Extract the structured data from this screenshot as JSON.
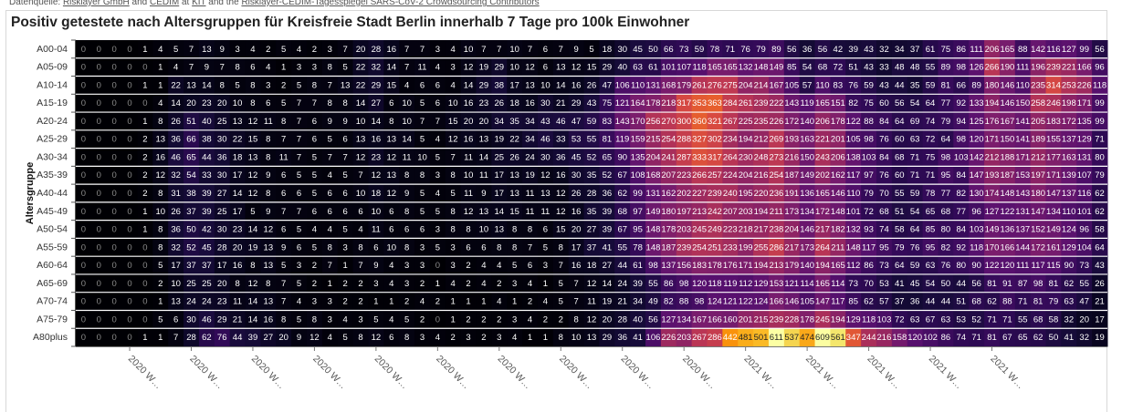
{
  "source": {
    "prefix": "Datenquelle: ",
    "links": [
      "Risklayer GmbH",
      "CEDIM",
      "KIT",
      "Risklayer-CEDIM-Tagesspiegel SARS-CoV-2 Crowdsourcing Contributors"
    ],
    "joiners": [
      " and ",
      " at ",
      " and the "
    ]
  },
  "chart_data": {
    "type": "heatmap",
    "title": "Positiv getestete nach Altersgruppen für Kreisfreie Stadt Berlin innerhalb 7 Tage pro 100k Einwohner",
    "xlabel": "",
    "ylabel": "Altersgruppe",
    "colorscale": "inferno",
    "zrange": [
      0,
      611
    ],
    "x_tick_labels": [
      "2020 W…",
      "2020 W…",
      "2020 W…",
      "2020 W…",
      "2020 W…",
      "2020 W…",
      "2020 W…",
      "2020 W…",
      "2020 W…",
      "2020 W…",
      "2021 W…",
      "2021 W…",
      "2021 W…",
      "2021 W…",
      "2021 W…"
    ],
    "x_tick_columns": [
      3,
      7,
      11,
      15,
      19,
      23,
      27,
      31,
      35,
      39,
      43,
      47,
      51,
      55,
      59
    ],
    "rows": [
      "A00-04",
      "A05-09",
      "A10-14",
      "A15-19",
      "A20-24",
      "A25-29",
      "A30-34",
      "A35-39",
      "A40-44",
      "A45-49",
      "A50-54",
      "A55-59",
      "A60-64",
      "A65-69",
      "A70-74",
      "A75-79",
      "A80plus"
    ],
    "values": [
      [
        0,
        0,
        0,
        0,
        1,
        4,
        5,
        7,
        13,
        9,
        3,
        4,
        2,
        5,
        4,
        2,
        3,
        7,
        20,
        28,
        16,
        7,
        7,
        3,
        4,
        10,
        7,
        7,
        10,
        7,
        6,
        7,
        9,
        5,
        18,
        30,
        45,
        50,
        66,
        73,
        59,
        78,
        71,
        76,
        79,
        89,
        56,
        36,
        56,
        42,
        39,
        43,
        32,
        34,
        37,
        61,
        75,
        86,
        111,
        206,
        165,
        88,
        142,
        116,
        127,
        99,
        56
      ],
      [
        0,
        0,
        0,
        0,
        0,
        1,
        4,
        7,
        9,
        7,
        8,
        6,
        4,
        1,
        3,
        3,
        8,
        5,
        22,
        32,
        14,
        7,
        11,
        4,
        3,
        12,
        19,
        29,
        10,
        12,
        6,
        13,
        12,
        15,
        29,
        40,
        63,
        61,
        101,
        107,
        118,
        165,
        165,
        132,
        148,
        149,
        85,
        54,
        68,
        72,
        51,
        43,
        33,
        48,
        48,
        55,
        89,
        98,
        126,
        266,
        190,
        111,
        196,
        239,
        221,
        166,
        96
      ],
      [
        0,
        0,
        0,
        0,
        1,
        1,
        22,
        13,
        14,
        8,
        5,
        8,
        3,
        2,
        5,
        8,
        7,
        13,
        22,
        29,
        15,
        4,
        6,
        6,
        4,
        14,
        29,
        38,
        17,
        13,
        10,
        14,
        16,
        26,
        47,
        106,
        110,
        131,
        168,
        179,
        261,
        276,
        275,
        204,
        214,
        167,
        105,
        57,
        110,
        83,
        76,
        59,
        43,
        44,
        35,
        59,
        81,
        66,
        89,
        180,
        146,
        110,
        235,
        314,
        253,
        226,
        118
      ],
      [
        0,
        0,
        0,
        0,
        0,
        4,
        14,
        20,
        23,
        20,
        10,
        8,
        6,
        5,
        7,
        7,
        8,
        8,
        14,
        27,
        6,
        10,
        5,
        6,
        10,
        16,
        23,
        26,
        18,
        16,
        30,
        21,
        29,
        43,
        75,
        121,
        164,
        178,
        218,
        317,
        353,
        363,
        284,
        261,
        239,
        222,
        143,
        119,
        165,
        151,
        82,
        75,
        60,
        56,
        54,
        64,
        77,
        92,
        133,
        194,
        146,
        150,
        258,
        246,
        198,
        171,
        99
      ],
      [
        0,
        0,
        0,
        0,
        1,
        8,
        26,
        51,
        40,
        25,
        13,
        12,
        11,
        8,
        7,
        6,
        9,
        9,
        10,
        14,
        8,
        10,
        7,
        7,
        15,
        20,
        20,
        34,
        35,
        34,
        43,
        46,
        47,
        59,
        83,
        143,
        170,
        256,
        270,
        300,
        360,
        321,
        267,
        225,
        235,
        226,
        172,
        140,
        206,
        178,
        122,
        88,
        84,
        64,
        69,
        74,
        79,
        94,
        125,
        176,
        167,
        141,
        205,
        183,
        172,
        135,
        99
      ],
      [
        0,
        0,
        0,
        0,
        2,
        13,
        36,
        66,
        38,
        30,
        22,
        15,
        8,
        7,
        7,
        6,
        5,
        6,
        13,
        16,
        13,
        14,
        5,
        4,
        12,
        16,
        13,
        19,
        22,
        34,
        46,
        33,
        53,
        55,
        81,
        119,
        159,
        215,
        254,
        288,
        327,
        302,
        234,
        194,
        212,
        269,
        193,
        163,
        221,
        201,
        105,
        98,
        76,
        60,
        63,
        72,
        64,
        98,
        120,
        171,
        150,
        141,
        189,
        155,
        137,
        129,
        71
      ],
      [
        0,
        0,
        0,
        0,
        2,
        16,
        46,
        65,
        44,
        36,
        18,
        13,
        8,
        11,
        7,
        5,
        7,
        7,
        12,
        23,
        12,
        11,
        10,
        5,
        7,
        11,
        14,
        25,
        26,
        24,
        30,
        36,
        45,
        52,
        65,
        90,
        135,
        204,
        241,
        287,
        333,
        317,
        264,
        230,
        248,
        273,
        216,
        150,
        243,
        206,
        138,
        103,
        84,
        68,
        71,
        75,
        98,
        103,
        142,
        212,
        188,
        171,
        212,
        177,
        163,
        131,
        80
      ],
      [
        0,
        0,
        0,
        0,
        2,
        12,
        32,
        54,
        33,
        30,
        17,
        12,
        9,
        6,
        5,
        5,
        4,
        5,
        7,
        12,
        13,
        8,
        8,
        3,
        8,
        10,
        11,
        17,
        13,
        19,
        12,
        16,
        30,
        35,
        52,
        67,
        108,
        168,
        207,
        223,
        266,
        257,
        224,
        204,
        216,
        254,
        187,
        149,
        202,
        162,
        117,
        97,
        76,
        60,
        71,
        71,
        95,
        84,
        147,
        193,
        187,
        153,
        197,
        171,
        139,
        107,
        79
      ],
      [
        0,
        0,
        0,
        0,
        2,
        8,
        31,
        38,
        39,
        27,
        14,
        12,
        8,
        6,
        6,
        5,
        6,
        6,
        10,
        18,
        12,
        9,
        5,
        4,
        5,
        11,
        9,
        17,
        13,
        11,
        13,
        12,
        26,
        28,
        36,
        62,
        99,
        131,
        162,
        202,
        227,
        239,
        240,
        195,
        220,
        236,
        191,
        136,
        165,
        146,
        110,
        79,
        70,
        55,
        59,
        78,
        77,
        82,
        130,
        174,
        148,
        143,
        180,
        147,
        137,
        116,
        62
      ],
      [
        0,
        0,
        0,
        0,
        1,
        10,
        26,
        37,
        39,
        25,
        17,
        5,
        9,
        7,
        7,
        6,
        6,
        6,
        6,
        10,
        6,
        8,
        5,
        5,
        8,
        12,
        13,
        14,
        15,
        11,
        11,
        12,
        16,
        35,
        39,
        68,
        97,
        149,
        180,
        197,
        213,
        242,
        207,
        203,
        194,
        211,
        173,
        134,
        172,
        148,
        101,
        72,
        68,
        51,
        54,
        65,
        68,
        77,
        96,
        127,
        122,
        131,
        147,
        134,
        110,
        101,
        62
      ],
      [
        0,
        0,
        0,
        0,
        1,
        8,
        36,
        50,
        42,
        30,
        23,
        14,
        12,
        6,
        5,
        4,
        4,
        5,
        4,
        11,
        6,
        6,
        6,
        3,
        8,
        8,
        10,
        13,
        8,
        8,
        6,
        15,
        20,
        27,
        39,
        67,
        95,
        148,
        178,
        203,
        245,
        249,
        223,
        218,
        217,
        238,
        204,
        146,
        217,
        182,
        132,
        93,
        74,
        58,
        64,
        85,
        80,
        84,
        103,
        149,
        136,
        137,
        152,
        149,
        124,
        96,
        58
      ],
      [
        0,
        0,
        0,
        0,
        0,
        8,
        32,
        52,
        45,
        28,
        20,
        19,
        13,
        9,
        6,
        5,
        8,
        3,
        8,
        6,
        10,
        8,
        3,
        5,
        3,
        6,
        6,
        8,
        8,
        7,
        5,
        8,
        17,
        37,
        41,
        55,
        78,
        148,
        187,
        239,
        254,
        251,
        233,
        199,
        255,
        286,
        217,
        173,
        264,
        211,
        148,
        117,
        95,
        79,
        76,
        95,
        82,
        92,
        118,
        170,
        166,
        144,
        172,
        161,
        129,
        104,
        64
      ],
      [
        0,
        0,
        0,
        0,
        0,
        5,
        17,
        37,
        37,
        17,
        16,
        8,
        13,
        5,
        3,
        2,
        7,
        1,
        7,
        9,
        4,
        3,
        3,
        0,
        3,
        2,
        4,
        4,
        5,
        6,
        3,
        7,
        16,
        18,
        27,
        44,
        61,
        98,
        137,
        156,
        183,
        178,
        176,
        171,
        194,
        213,
        179,
        140,
        194,
        165,
        112,
        86,
        73,
        64,
        59,
        63,
        76,
        80,
        90,
        122,
        120,
        111,
        117,
        115,
        90,
        73,
        43
      ],
      [
        0,
        0,
        0,
        0,
        0,
        2,
        10,
        25,
        25,
        20,
        8,
        12,
        8,
        7,
        5,
        2,
        1,
        2,
        2,
        3,
        4,
        3,
        2,
        1,
        4,
        2,
        4,
        2,
        3,
        4,
        1,
        5,
        7,
        12,
        14,
        24,
        39,
        55,
        86,
        98,
        120,
        118,
        119,
        112,
        129,
        153,
        121,
        114,
        165,
        114,
        73,
        70,
        53,
        41,
        45,
        54,
        50,
        44,
        56,
        81,
        91,
        87,
        98,
        81,
        62,
        55,
        26
      ],
      [
        0,
        0,
        0,
        0,
        0,
        1,
        13,
        24,
        24,
        23,
        11,
        14,
        13,
        7,
        4,
        3,
        3,
        2,
        2,
        1,
        1,
        2,
        4,
        2,
        1,
        1,
        1,
        4,
        1,
        2,
        4,
        5,
        7,
        11,
        19,
        21,
        34,
        49,
        82,
        88,
        98,
        124,
        121,
        122,
        124,
        166,
        146,
        105,
        147,
        117,
        85,
        62,
        57,
        37,
        36,
        44,
        44,
        51,
        68,
        62,
        88,
        71,
        81,
        79,
        63,
        47,
        21
      ],
      [
        0,
        0,
        0,
        0,
        0,
        5,
        6,
        30,
        46,
        29,
        21,
        14,
        16,
        8,
        5,
        8,
        3,
        4,
        3,
        5,
        4,
        5,
        2,
        0,
        1,
        2,
        2,
        2,
        3,
        4,
        2,
        2,
        8,
        12,
        20,
        28,
        40,
        56,
        127,
        134,
        167,
        166,
        160,
        201,
        215,
        239,
        228,
        178,
        245,
        194,
        129,
        118,
        103,
        72,
        63,
        67,
        63,
        53,
        52,
        71,
        71,
        55,
        68,
        58,
        32,
        20,
        17
      ],
      [
        0,
        0,
        0,
        0,
        1,
        1,
        7,
        28,
        62,
        76,
        44,
        39,
        27,
        20,
        9,
        12,
        4,
        5,
        8,
        12,
        6,
        8,
        3,
        4,
        2,
        3,
        2,
        3,
        4,
        1,
        1,
        8,
        10,
        13,
        29,
        36,
        41,
        106,
        226,
        203,
        267,
        286,
        442,
        481,
        501,
        611,
        537,
        474,
        609,
        561,
        347,
        244,
        216,
        158,
        120,
        102,
        86,
        74,
        71,
        81,
        67,
        65,
        62,
        50,
        41,
        32,
        19
      ]
    ]
  }
}
